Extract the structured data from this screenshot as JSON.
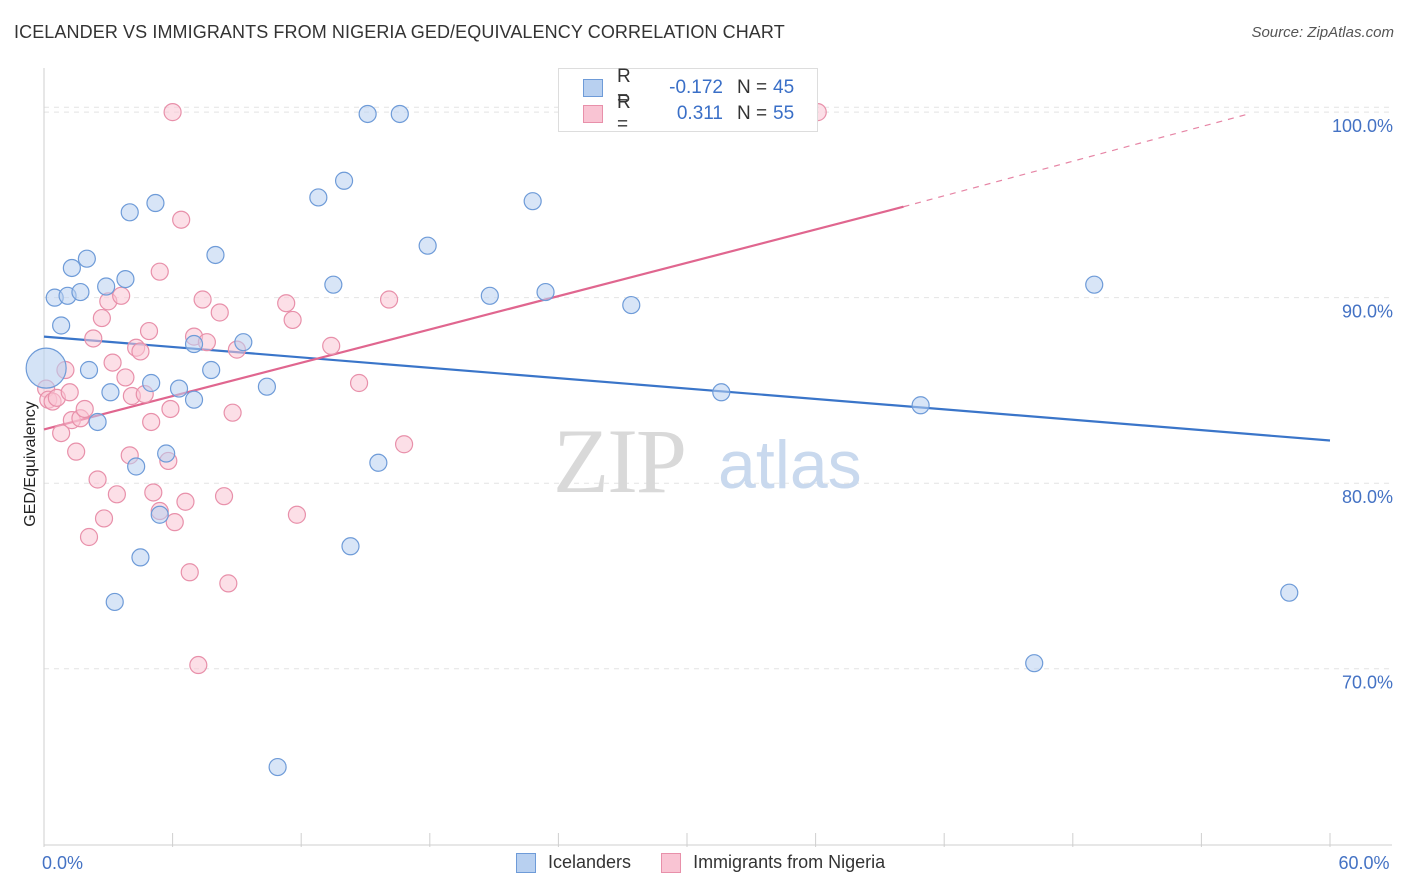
{
  "title": "ICELANDER VS IMMIGRANTS FROM NIGERIA GED/EQUIVALENCY CORRELATION CHART",
  "source": "Source: ZipAtlas.com",
  "watermark": {
    "zip": "ZIP",
    "atlas": "atlas"
  },
  "legend": {
    "r_label": "R =",
    "n_label": "N =",
    "rows": [
      {
        "r": "-0.172",
        "n": "45",
        "fill": "#b8d0f0",
        "stroke": "#6e9bd8"
      },
      {
        "r": " 0.311",
        "n": "55",
        "fill": "#f9c4d3",
        "stroke": "#e890aa"
      }
    ]
  },
  "bottom_legend": [
    {
      "label": "Icelanders",
      "fill": "#b8d0f0",
      "stroke": "#6e9bd8"
    },
    {
      "label": "Immigrants from Nigeria",
      "fill": "#f9c4d3",
      "stroke": "#e890aa"
    }
  ],
  "chart_data": {
    "type": "scatter",
    "title": "ICELANDER VS IMMIGRANTS FROM NIGERIA GED/EQUIVALENCY CORRELATION CHART",
    "xlabel": "",
    "ylabel": "GED/Equivalency",
    "xlim": [
      0,
      60
    ],
    "ylim": [
      60.5,
      102
    ],
    "x_tick_labels": [
      {
        "value": 0,
        "label": "0.0%"
      },
      {
        "value": 60,
        "label": "60.0%"
      }
    ],
    "y_tick_labels": [
      {
        "value": 70,
        "label": "70.0%"
      },
      {
        "value": 80,
        "label": "80.0%"
      },
      {
        "value": 90,
        "label": "90.0%"
      },
      {
        "value": 100,
        "label": "100.0%"
      }
    ],
    "series": [
      {
        "name": "Icelanders",
        "color": "#3a75c9",
        "point_fill": "#b8d0f0",
        "point_stroke": "#6e9bd8",
        "trend": {
          "x": [
            0,
            60
          ],
          "y": [
            87.9,
            82.3
          ],
          "dashed_to": null
        },
        "points": [
          [
            0.1,
            86.2
          ],
          [
            0.5,
            90.0
          ],
          [
            0.8,
            88.5
          ],
          [
            1.1,
            90.1
          ],
          [
            1.3,
            91.6
          ],
          [
            1.7,
            90.3
          ],
          [
            2.0,
            92.1
          ],
          [
            2.1,
            86.1
          ],
          [
            2.5,
            83.3
          ],
          [
            2.9,
            90.6
          ],
          [
            3.1,
            84.9
          ],
          [
            3.3,
            73.6
          ],
          [
            3.8,
            91.0
          ],
          [
            4.0,
            94.6
          ],
          [
            4.3,
            80.9
          ],
          [
            4.5,
            76.0
          ],
          [
            5.0,
            85.4
          ],
          [
            5.2,
            95.1
          ],
          [
            5.4,
            78.3
          ],
          [
            5.7,
            81.6
          ],
          [
            6.3,
            85.1
          ],
          [
            7.0,
            87.5
          ],
          [
            7.0,
            84.5
          ],
          [
            7.8,
            86.1
          ],
          [
            8.0,
            92.3
          ],
          [
            9.3,
            87.6
          ],
          [
            10.4,
            85.2
          ],
          [
            10.9,
            64.7
          ],
          [
            12.8,
            95.4
          ],
          [
            13.5,
            90.7
          ],
          [
            14.0,
            96.3
          ],
          [
            14.3,
            76.6
          ],
          [
            15.1,
            99.9
          ],
          [
            15.6,
            81.1
          ],
          [
            16.6,
            99.9
          ],
          [
            17.9,
            92.8
          ],
          [
            20.8,
            90.1
          ],
          [
            22.8,
            95.2
          ],
          [
            23.4,
            90.3
          ],
          [
            27.4,
            89.6
          ],
          [
            31.6,
            84.9
          ],
          [
            40.9,
            84.2
          ],
          [
            46.2,
            70.3
          ],
          [
            49.0,
            90.7
          ],
          [
            58.1,
            74.1
          ]
        ]
      },
      {
        "name": "Immigrants from Nigeria",
        "color": "#e0668f",
        "point_fill": "#f9c4d3",
        "point_stroke": "#e890aa",
        "trend": {
          "x": [
            0,
            40.1
          ],
          "y": [
            82.9,
            94.9
          ],
          "dashed_to": {
            "x": 56.2,
            "y": 99.9
          }
        },
        "points": [
          [
            0.1,
            85.1
          ],
          [
            0.2,
            84.5
          ],
          [
            0.4,
            84.4
          ],
          [
            0.6,
            84.6
          ],
          [
            0.8,
            82.7
          ],
          [
            1.0,
            86.1
          ],
          [
            1.2,
            84.9
          ],
          [
            1.3,
            83.4
          ],
          [
            1.5,
            81.7
          ],
          [
            1.7,
            83.5
          ],
          [
            1.9,
            84.0
          ],
          [
            2.1,
            77.1
          ],
          [
            2.3,
            87.8
          ],
          [
            2.5,
            80.2
          ],
          [
            2.7,
            88.9
          ],
          [
            2.8,
            78.1
          ],
          [
            3.0,
            89.8
          ],
          [
            3.2,
            86.5
          ],
          [
            3.4,
            79.4
          ],
          [
            3.6,
            90.1
          ],
          [
            3.8,
            85.7
          ],
          [
            4.0,
            81.5
          ],
          [
            4.1,
            84.7
          ],
          [
            4.3,
            87.3
          ],
          [
            4.5,
            87.1
          ],
          [
            4.7,
            84.8
          ],
          [
            4.9,
            88.2
          ],
          [
            5.0,
            83.3
          ],
          [
            5.1,
            79.5
          ],
          [
            5.4,
            78.5
          ],
          [
            5.8,
            81.2
          ],
          [
            5.9,
            84.0
          ],
          [
            6.0,
            100.0
          ],
          [
            6.1,
            77.9
          ],
          [
            6.4,
            94.2
          ],
          [
            6.6,
            79.0
          ],
          [
            6.8,
            75.2
          ],
          [
            7.0,
            87.9
          ],
          [
            7.2,
            70.2
          ],
          [
            7.4,
            89.9
          ],
          [
            7.6,
            87.6
          ],
          [
            8.2,
            89.2
          ],
          [
            8.4,
            79.3
          ],
          [
            8.6,
            74.6
          ],
          [
            8.8,
            83.8
          ],
          [
            9.0,
            87.2
          ],
          [
            11.3,
            89.7
          ],
          [
            11.6,
            88.8
          ],
          [
            11.8,
            78.3
          ],
          [
            13.4,
            87.4
          ],
          [
            14.7,
            85.4
          ],
          [
            16.1,
            89.9
          ],
          [
            16.8,
            82.1
          ],
          [
            36.1,
            100.0
          ],
          [
            5.4,
            91.4
          ]
        ]
      }
    ]
  }
}
